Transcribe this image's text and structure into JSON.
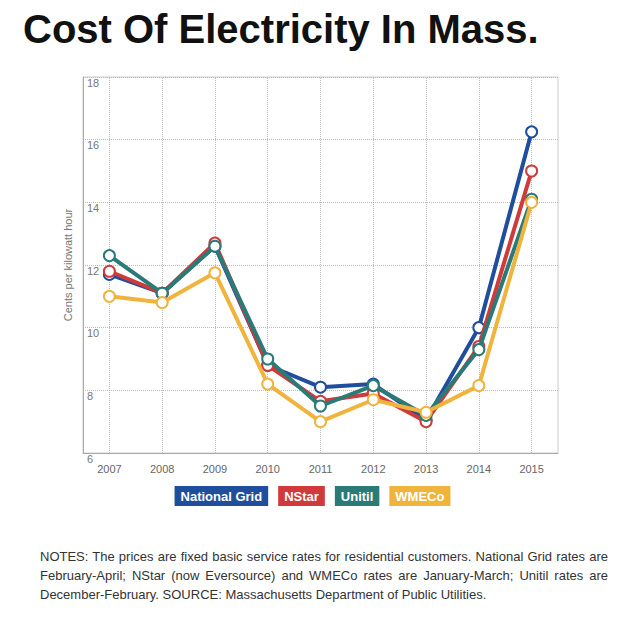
{
  "chart_data": {
    "type": "line",
    "title": "Cost Of Electricity In Mass.",
    "y_label": "Cents per kilowatt hour",
    "categories": [
      "2007",
      "2008",
      "2009",
      "2010",
      "2011",
      "2012",
      "2013",
      "2014",
      "2015"
    ],
    "series": [
      {
        "name": "National Grid",
        "color": "#1f4e9c",
        "values": [
          11.7,
          11.1,
          12.6,
          8.8,
          8.1,
          8.2,
          7.05,
          10.0,
          16.25
        ]
      },
      {
        "name": "NStar",
        "color": "#d03a3a",
        "values": [
          11.8,
          11.1,
          12.7,
          8.8,
          7.65,
          7.9,
          7.0,
          9.4,
          15.0
        ]
      },
      {
        "name": "Unitil",
        "color": "#2a7a78",
        "values": [
          12.3,
          11.1,
          12.6,
          9.0,
          7.5,
          8.15,
          7.2,
          9.3,
          14.1
        ]
      },
      {
        "name": "WMECo",
        "color": "#f0b43c",
        "values": [
          11.0,
          10.8,
          11.75,
          8.2,
          7.0,
          7.7,
          7.3,
          8.15,
          14.0
        ]
      }
    ],
    "ylim": [
      6,
      18
    ],
    "yticks": [
      6,
      8,
      10,
      12,
      14,
      16,
      18
    ],
    "grid": true,
    "legend": "bottom",
    "marker": "circle",
    "notes": "NOTES: The prices are fixed basic service rates for residential customers. National Grid rates are February-April; NStar (now Eversource) and WMECo rates are January-March; Unitil rates are December-February. SOURCE: Massachusetts Department of Public Utilities."
  }
}
